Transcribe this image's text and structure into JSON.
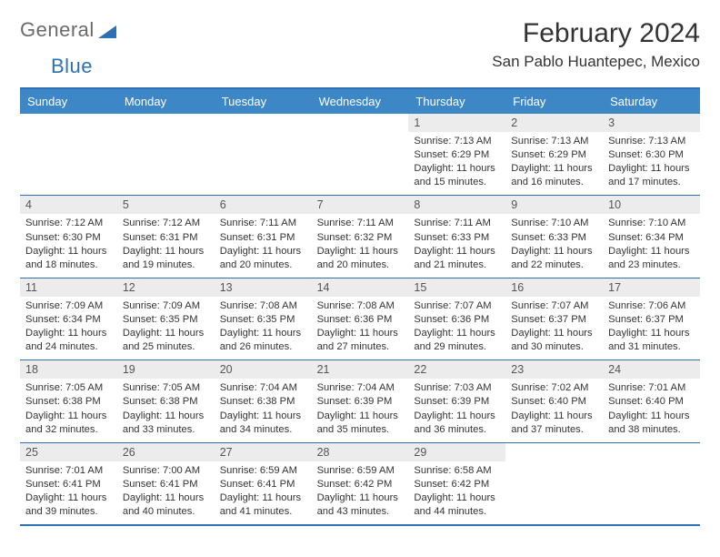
{
  "logo": {
    "text1": "General",
    "text2": "Blue"
  },
  "title": "February 2024",
  "location": "San Pablo Huantepec, Mexico",
  "colors": {
    "header_bg": "#3d87c7",
    "border": "#2f6fb3",
    "daynum_bg": "#ececec",
    "text": "#333333",
    "logo_grey": "#6a6a6a",
    "logo_blue": "#2f6fb3"
  },
  "dow": [
    "Sunday",
    "Monday",
    "Tuesday",
    "Wednesday",
    "Thursday",
    "Friday",
    "Saturday"
  ],
  "weeks": [
    [
      null,
      null,
      null,
      null,
      {
        "n": "1",
        "sunrise": "7:13 AM",
        "sunset": "6:29 PM",
        "daylight": "11 hours and 15 minutes."
      },
      {
        "n": "2",
        "sunrise": "7:13 AM",
        "sunset": "6:29 PM",
        "daylight": "11 hours and 16 minutes."
      },
      {
        "n": "3",
        "sunrise": "7:13 AM",
        "sunset": "6:30 PM",
        "daylight": "11 hours and 17 minutes."
      }
    ],
    [
      {
        "n": "4",
        "sunrise": "7:12 AM",
        "sunset": "6:30 PM",
        "daylight": "11 hours and 18 minutes."
      },
      {
        "n": "5",
        "sunrise": "7:12 AM",
        "sunset": "6:31 PM",
        "daylight": "11 hours and 19 minutes."
      },
      {
        "n": "6",
        "sunrise": "7:11 AM",
        "sunset": "6:31 PM",
        "daylight": "11 hours and 20 minutes."
      },
      {
        "n": "7",
        "sunrise": "7:11 AM",
        "sunset": "6:32 PM",
        "daylight": "11 hours and 20 minutes."
      },
      {
        "n": "8",
        "sunrise": "7:11 AM",
        "sunset": "6:33 PM",
        "daylight": "11 hours and 21 minutes."
      },
      {
        "n": "9",
        "sunrise": "7:10 AM",
        "sunset": "6:33 PM",
        "daylight": "11 hours and 22 minutes."
      },
      {
        "n": "10",
        "sunrise": "7:10 AM",
        "sunset": "6:34 PM",
        "daylight": "11 hours and 23 minutes."
      }
    ],
    [
      {
        "n": "11",
        "sunrise": "7:09 AM",
        "sunset": "6:34 PM",
        "daylight": "11 hours and 24 minutes."
      },
      {
        "n": "12",
        "sunrise": "7:09 AM",
        "sunset": "6:35 PM",
        "daylight": "11 hours and 25 minutes."
      },
      {
        "n": "13",
        "sunrise": "7:08 AM",
        "sunset": "6:35 PM",
        "daylight": "11 hours and 26 minutes."
      },
      {
        "n": "14",
        "sunrise": "7:08 AM",
        "sunset": "6:36 PM",
        "daylight": "11 hours and 27 minutes."
      },
      {
        "n": "15",
        "sunrise": "7:07 AM",
        "sunset": "6:36 PM",
        "daylight": "11 hours and 29 minutes."
      },
      {
        "n": "16",
        "sunrise": "7:07 AM",
        "sunset": "6:37 PM",
        "daylight": "11 hours and 30 minutes."
      },
      {
        "n": "17",
        "sunrise": "7:06 AM",
        "sunset": "6:37 PM",
        "daylight": "11 hours and 31 minutes."
      }
    ],
    [
      {
        "n": "18",
        "sunrise": "7:05 AM",
        "sunset": "6:38 PM",
        "daylight": "11 hours and 32 minutes."
      },
      {
        "n": "19",
        "sunrise": "7:05 AM",
        "sunset": "6:38 PM",
        "daylight": "11 hours and 33 minutes."
      },
      {
        "n": "20",
        "sunrise": "7:04 AM",
        "sunset": "6:38 PM",
        "daylight": "11 hours and 34 minutes."
      },
      {
        "n": "21",
        "sunrise": "7:04 AM",
        "sunset": "6:39 PM",
        "daylight": "11 hours and 35 minutes."
      },
      {
        "n": "22",
        "sunrise": "7:03 AM",
        "sunset": "6:39 PM",
        "daylight": "11 hours and 36 minutes."
      },
      {
        "n": "23",
        "sunrise": "7:02 AM",
        "sunset": "6:40 PM",
        "daylight": "11 hours and 37 minutes."
      },
      {
        "n": "24",
        "sunrise": "7:01 AM",
        "sunset": "6:40 PM",
        "daylight": "11 hours and 38 minutes."
      }
    ],
    [
      {
        "n": "25",
        "sunrise": "7:01 AM",
        "sunset": "6:41 PM",
        "daylight": "11 hours and 39 minutes."
      },
      {
        "n": "26",
        "sunrise": "7:00 AM",
        "sunset": "6:41 PM",
        "daylight": "11 hours and 40 minutes."
      },
      {
        "n": "27",
        "sunrise": "6:59 AM",
        "sunset": "6:41 PM",
        "daylight": "11 hours and 41 minutes."
      },
      {
        "n": "28",
        "sunrise": "6:59 AM",
        "sunset": "6:42 PM",
        "daylight": "11 hours and 43 minutes."
      },
      {
        "n": "29",
        "sunrise": "6:58 AM",
        "sunset": "6:42 PM",
        "daylight": "11 hours and 44 minutes."
      },
      null,
      null
    ]
  ]
}
